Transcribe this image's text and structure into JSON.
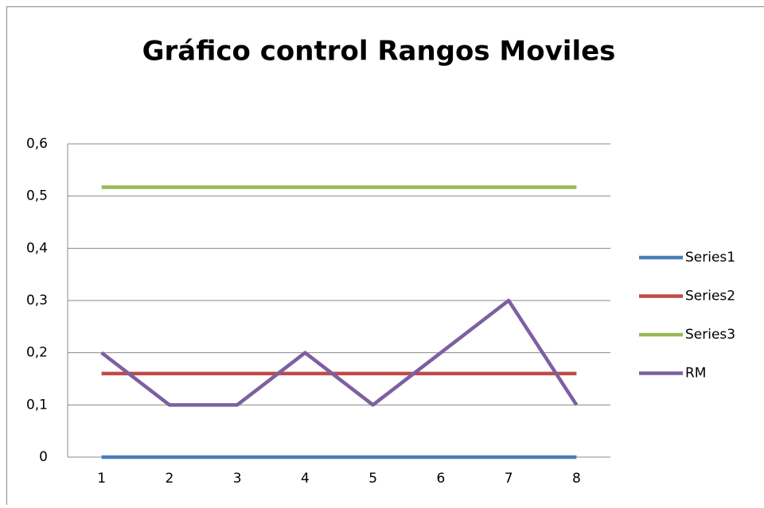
{
  "chart_data": {
    "type": "line",
    "title": "Gráfico control Rangos Moviles",
    "categories": [
      "1",
      "2",
      "3",
      "4",
      "5",
      "6",
      "7",
      "8"
    ],
    "series": [
      {
        "name": "Series1",
        "color": "#4a7ebb",
        "values": [
          0,
          0,
          0,
          0,
          0,
          0,
          0,
          0
        ]
      },
      {
        "name": "Series2",
        "color": "#be4b48",
        "values": [
          0.16,
          0.16,
          0.16,
          0.16,
          0.16,
          0.16,
          0.16,
          0.16
        ]
      },
      {
        "name": "Series3",
        "color": "#98b954",
        "values": [
          0.517,
          0.517,
          0.517,
          0.517,
          0.517,
          0.517,
          0.517,
          0.517
        ]
      },
      {
        "name": "RM",
        "color": "#7d60a0",
        "values": [
          0.2,
          0.1,
          0.1,
          0.2,
          0.1,
          0.2,
          0.3,
          0.1
        ]
      }
    ],
    "ylim": [
      0,
      0.6
    ],
    "yticks": [
      0,
      {
        "value": 0.1,
        "label": "0,1"
      },
      {
        "value": 0.2,
        "label": "0,2"
      },
      {
        "value": 0.3,
        "label": "0,3"
      },
      {
        "value": 0.4,
        "label": "0,4"
      },
      {
        "value": 0.5,
        "label": "0,5"
      },
      {
        "value": 0.6,
        "label": "0,6"
      }
    ],
    "grid": true,
    "legend": "right"
  }
}
